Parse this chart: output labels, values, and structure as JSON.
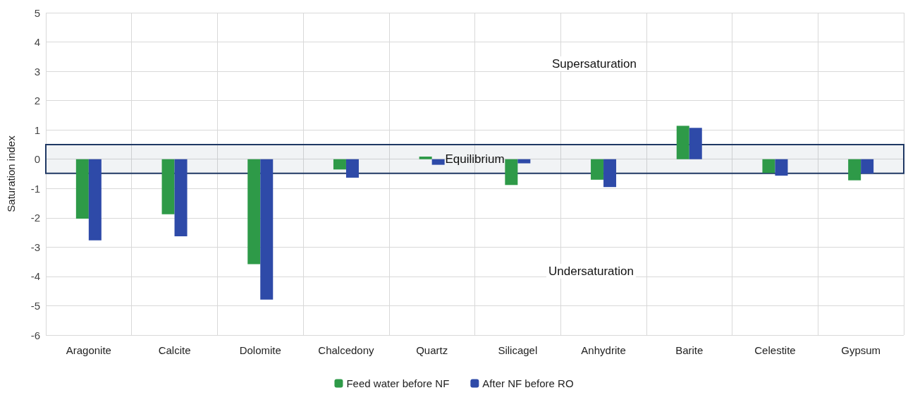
{
  "chart_data": {
    "type": "bar",
    "ylabel": "Saturation index",
    "categories": [
      "Aragonite",
      "Calcite",
      "Dolomite",
      "Chalcedony",
      "Quartz",
      "Silicagel",
      "Anhydrite",
      "Barite",
      "Celestite",
      "Gypsum"
    ],
    "series": [
      {
        "name": "Feed water before NF",
        "color": "#2e9a48",
        "values": [
          -2.03,
          -1.88,
          -3.58,
          -0.35,
          0.09,
          -0.88,
          -0.7,
          1.14,
          -0.47,
          -0.72
        ]
      },
      {
        "name": "After NF before RO",
        "color": "#2e4aa8",
        "values": [
          -2.77,
          -2.63,
          -4.79,
          -0.63,
          -0.19,
          -0.14,
          -0.95,
          1.07,
          -0.56,
          -0.49
        ]
      }
    ],
    "ylim": [
      -6,
      5
    ],
    "yticks": [
      -6,
      -5,
      -4,
      -3,
      -2,
      -1,
      0,
      1,
      2,
      3,
      4,
      5
    ],
    "grid": true,
    "legend": "bottom",
    "bands": [
      {
        "axis": "y",
        "from": -0.48,
        "to": 0.5,
        "label": "Equilibrium",
        "color": "#1f3864"
      }
    ],
    "annotations": [
      "Supersaturation",
      "Undersaturation"
    ]
  }
}
